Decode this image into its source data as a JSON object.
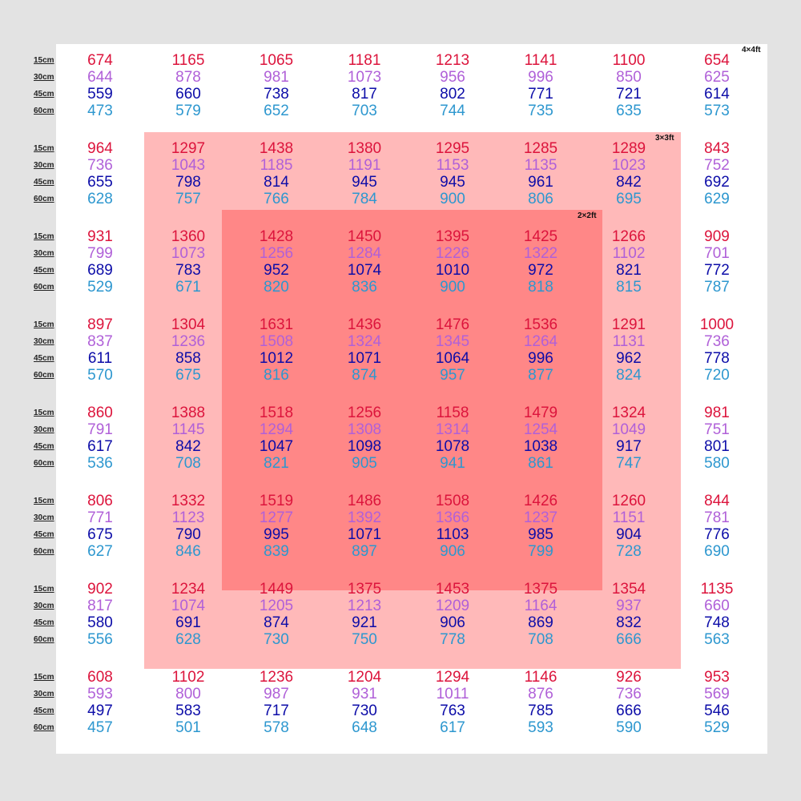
{
  "depth_labels": [
    "15cm",
    "30cm",
    "45cm",
    "60cm"
  ],
  "zone_labels": {
    "outer": "4×4ft",
    "middle": "3×3ft",
    "inner": "2×2ft"
  },
  "colors": {
    "15cm": "#dc143c",
    "30cm": "#b060d8",
    "45cm": "#0c0ca8",
    "60cm": "#2d97cf",
    "zone_3x3": "#ffb9b9",
    "zone_2x2": "#ff8787"
  },
  "chart_data": {
    "type": "table",
    "rows": 8,
    "cols": 8,
    "series_order": [
      "15cm",
      "30cm",
      "45cm",
      "60cm"
    ],
    "grid": [
      [
        [
          674,
          644,
          559,
          473
        ],
        [
          1165,
          878,
          660,
          579
        ],
        [
          1065,
          981,
          738,
          652
        ],
        [
          1181,
          1073,
          817,
          703
        ],
        [
          1213,
          956,
          802,
          744
        ],
        [
          1141,
          996,
          771,
          735
        ],
        [
          1100,
          850,
          721,
          635
        ],
        [
          654,
          625,
          614,
          573
        ]
      ],
      [
        [
          964,
          736,
          655,
          628
        ],
        [
          1297,
          1043,
          798,
          757
        ],
        [
          1438,
          1185,
          814,
          766
        ],
        [
          1380,
          1191,
          945,
          784
        ],
        [
          1295,
          1153,
          945,
          900
        ],
        [
          1285,
          1135,
          961,
          806
        ],
        [
          1289,
          1023,
          842,
          695
        ],
        [
          843,
          752,
          692,
          629
        ]
      ],
      [
        [
          931,
          799,
          689,
          529
        ],
        [
          1360,
          1073,
          783,
          671
        ],
        [
          1428,
          1256,
          952,
          820
        ],
        [
          1450,
          1284,
          1074,
          836
        ],
        [
          1395,
          1226,
          1010,
          900
        ],
        [
          1425,
          1322,
          972,
          818
        ],
        [
          1266,
          1102,
          821,
          815
        ],
        [
          909,
          701,
          772,
          787
        ]
      ],
      [
        [
          897,
          837,
          611,
          570
        ],
        [
          1304,
          1236,
          858,
          675
        ],
        [
          1631,
          1508,
          1012,
          816
        ],
        [
          1436,
          1324,
          1071,
          874
        ],
        [
          1476,
          1345,
          1064,
          957
        ],
        [
          1536,
          1264,
          996,
          877
        ],
        [
          1291,
          1131,
          962,
          824
        ],
        [
          1000,
          736,
          778,
          720
        ]
      ],
      [
        [
          860,
          791,
          617,
          536
        ],
        [
          1388,
          1145,
          842,
          708
        ],
        [
          1518,
          1294,
          1047,
          821
        ],
        [
          1256,
          1308,
          1098,
          905
        ],
        [
          1158,
          1314,
          1078,
          941
        ],
        [
          1479,
          1254,
          1038,
          861
        ],
        [
          1324,
          1049,
          917,
          747
        ],
        [
          981,
          751,
          801,
          580
        ]
      ],
      [
        [
          806,
          771,
          675,
          627
        ],
        [
          1332,
          1123,
          790,
          846
        ],
        [
          1519,
          1277,
          995,
          839
        ],
        [
          1486,
          1392,
          1071,
          897
        ],
        [
          1508,
          1366,
          1103,
          906
        ],
        [
          1426,
          1237,
          985,
          799
        ],
        [
          1260,
          1151,
          904,
          728
        ],
        [
          844,
          781,
          776,
          690
        ]
      ],
      [
        [
          902,
          817,
          580,
          556
        ],
        [
          1234,
          1074,
          691,
          628
        ],
        [
          1449,
          1205,
          874,
          730
        ],
        [
          1375,
          1213,
          921,
          750
        ],
        [
          1453,
          1209,
          906,
          778
        ],
        [
          1375,
          1164,
          869,
          708
        ],
        [
          1354,
          937,
          832,
          666
        ],
        [
          1135,
          660,
          748,
          563
        ]
      ],
      [
        [
          608,
          593,
          497,
          457
        ],
        [
          1102,
          800,
          583,
          501
        ],
        [
          1236,
          987,
          717,
          578
        ],
        [
          1204,
          931,
          730,
          648
        ],
        [
          1294,
          1011,
          763,
          617
        ],
        [
          1146,
          876,
          785,
          593
        ],
        [
          926,
          736,
          666,
          590
        ],
        [
          953,
          569,
          546,
          529
        ]
      ]
    ]
  }
}
